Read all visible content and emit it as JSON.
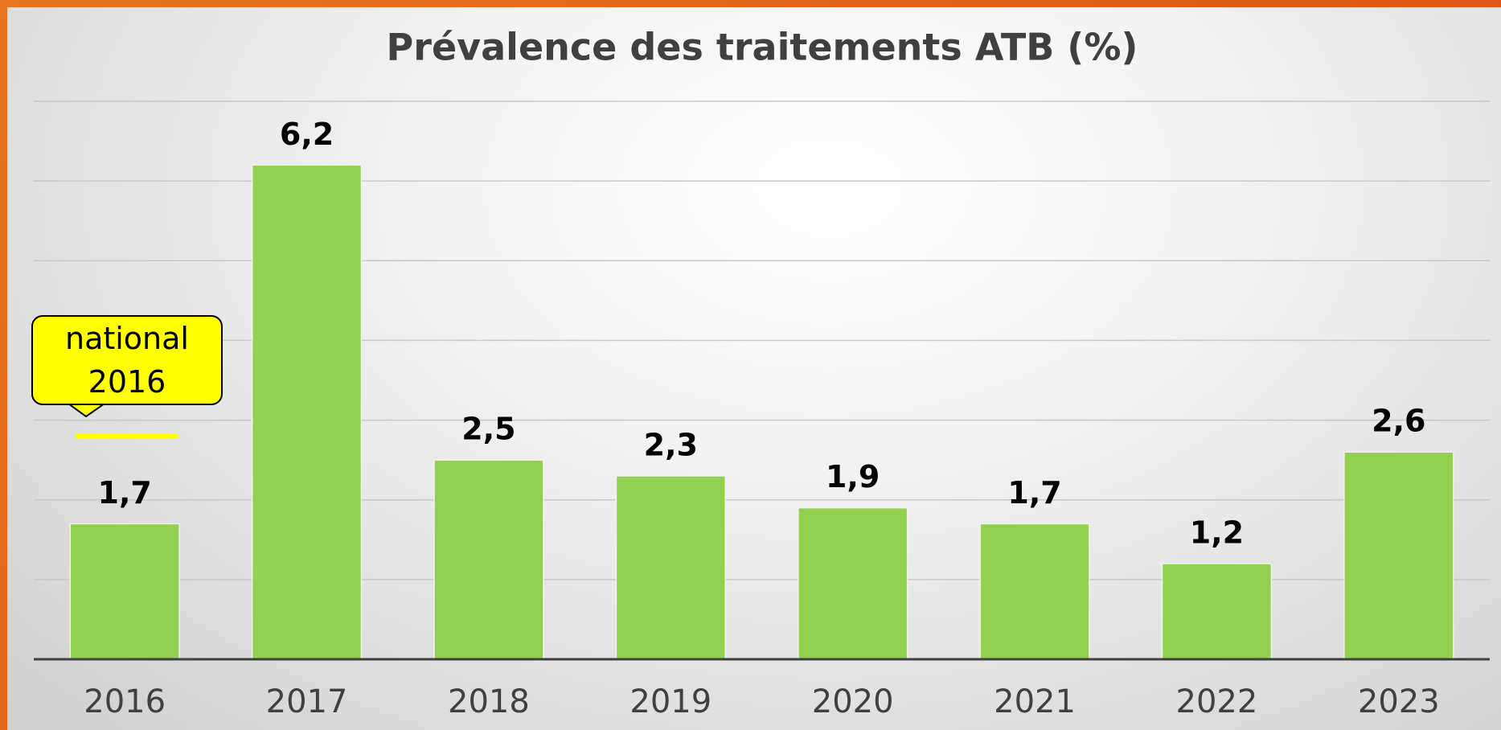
{
  "chart_data": {
    "type": "bar",
    "title": "Prévalence des traitements ATB (%)",
    "categories": [
      "2016",
      "2017",
      "2018",
      "2019",
      "2020",
      "2021",
      "2022",
      "2023"
    ],
    "values": [
      1.7,
      6.2,
      2.5,
      2.3,
      1.9,
      1.7,
      1.2,
      2.6
    ],
    "value_labels": [
      "1,7",
      "6,2",
      "2,5",
      "2,3",
      "1,9",
      "1,7",
      "1,2",
      "2,6"
    ],
    "color": "#92d050",
    "ylim": [
      0,
      7
    ],
    "yticks": [
      0,
      1,
      2,
      3,
      4,
      5,
      6,
      7
    ],
    "grid": true,
    "annotation": {
      "text": "national 2016",
      "value": 2.8,
      "color": "#ffff00"
    }
  }
}
